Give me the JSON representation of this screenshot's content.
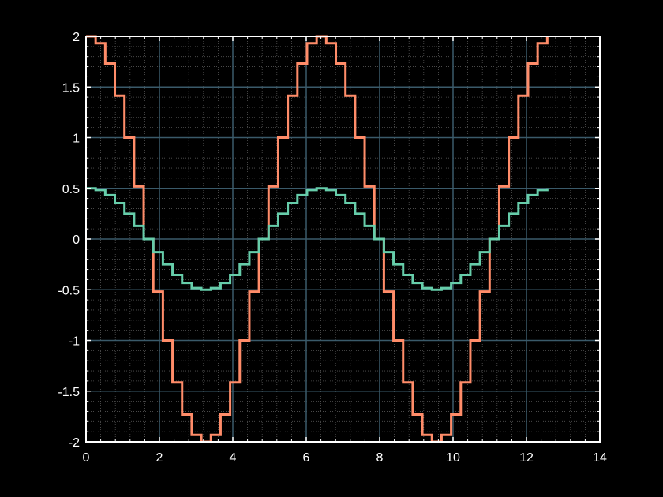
{
  "chart_data": {
    "type": "line",
    "style": "stairs",
    "title": "",
    "xlabel": "",
    "ylabel": "",
    "xlim": [
      0,
      14
    ],
    "ylim": [
      -2,
      2
    ],
    "x_ticks": [
      0,
      2,
      4,
      6,
      8,
      10,
      12,
      14
    ],
    "y_ticks": [
      -2,
      -1.5,
      -1,
      -0.5,
      0,
      0.5,
      1,
      1.5,
      2
    ],
    "x_tick_labels": [
      "0",
      "2",
      "4",
      "6",
      "8",
      "10",
      "12",
      "14"
    ],
    "y_tick_labels": [
      "-2",
      "-1.5",
      "-1",
      "-0.5",
      "0",
      "0.5",
      "1",
      "1.5",
      "2"
    ],
    "grid": true,
    "minor_grid": true,
    "legend": "none",
    "colors": {
      "background": "#000000",
      "axes": "#ffffff",
      "grid_major": "#3a5a6a",
      "grid_minor": "#555555"
    },
    "x": [
      0,
      0.2618,
      0.5236,
      0.7854,
      1.0472,
      1.309,
      1.5708,
      1.8326,
      2.0944,
      2.3562,
      2.618,
      2.8798,
      3.1416,
      3.4034,
      3.6652,
      3.927,
      4.1888,
      4.4506,
      4.7124,
      4.9742,
      5.236,
      5.4978,
      5.7596,
      6.0214,
      6.2832,
      6.545,
      6.8068,
      7.0686,
      7.3304,
      7.5922,
      7.854,
      8.1158,
      8.3776,
      8.6394,
      8.9012,
      9.163,
      9.4248,
      9.6866,
      9.9484,
      10.2102,
      10.472,
      10.7338,
      10.9956,
      11.2574,
      11.5192,
      11.781,
      12.0428,
      12.3046,
      12.5664
    ],
    "series": [
      {
        "color": "#ff8c69",
        "values": [
          2,
          1.932,
          1.732,
          1.414,
          1,
          0.518,
          0,
          -0.518,
          -1,
          -1.414,
          -1.732,
          -1.932,
          -2,
          -1.932,
          -1.732,
          -1.414,
          -1,
          -0.518,
          0,
          0.518,
          1,
          1.414,
          1.732,
          1.932,
          2,
          1.932,
          1.732,
          1.414,
          1,
          0.518,
          0,
          -0.518,
          -1,
          -1.414,
          -1.732,
          -1.932,
          -2,
          -1.932,
          -1.732,
          -1.414,
          -1,
          -0.518,
          0,
          0.518,
          1,
          1.414,
          1.732,
          1.932,
          2
        ]
      },
      {
        "color": "#66cdaa",
        "values": [
          0.5,
          0.483,
          0.433,
          0.354,
          0.25,
          0.129,
          0,
          -0.129,
          -0.25,
          -0.354,
          -0.433,
          -0.483,
          -0.5,
          -0.483,
          -0.433,
          -0.354,
          -0.25,
          -0.129,
          0,
          0.129,
          0.25,
          0.354,
          0.433,
          0.483,
          0.5,
          0.483,
          0.433,
          0.354,
          0.25,
          0.129,
          0,
          -0.129,
          -0.25,
          -0.354,
          -0.433,
          -0.483,
          -0.5,
          -0.483,
          -0.433,
          -0.354,
          -0.25,
          -0.129,
          0,
          0.129,
          0.25,
          0.354,
          0.433,
          0.483,
          0.5
        ]
      }
    ]
  }
}
